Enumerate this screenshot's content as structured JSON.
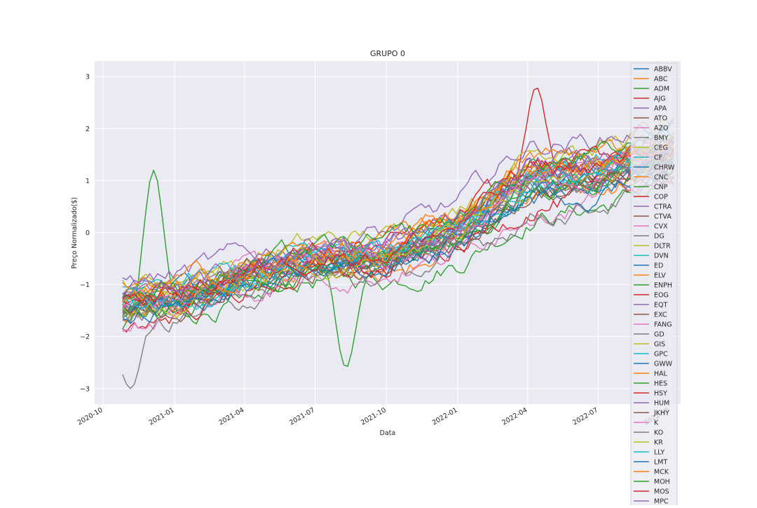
{
  "chart_data": {
    "type": "line",
    "title": "GRUPO 0",
    "xlabel": "Data",
    "ylabel": "Preço Normalizado($)",
    "x_range": [
      "2020-09-20",
      "2022-10-15"
    ],
    "x_data_range": [
      "2020-10-26",
      "2022-10-07"
    ],
    "ylim": [
      -3.3,
      3.3
    ],
    "yticks": [
      -3,
      -2,
      -1,
      0,
      1,
      2,
      3
    ],
    "xticks": [
      "2020-10",
      "2021-01",
      "2021-04",
      "2021-07",
      "2021-10",
      "2022-01",
      "2022-04",
      "2022-07",
      "2022-10"
    ],
    "grid": true,
    "legend_position": "right",
    "background": "#eaeaf2",
    "palette": [
      "#1f77b4",
      "#ff7f0e",
      "#2ca02c",
      "#d62728",
      "#9467bd",
      "#8c564b",
      "#e377c2",
      "#7f7f7f",
      "#bcbd22",
      "#17becf"
    ],
    "series_names": [
      "ABBV",
      "ABC",
      "ADM",
      "AJG",
      "APA",
      "ATO",
      "AZO",
      "BMY",
      "CEG",
      "CF",
      "CHRW",
      "CNC",
      "CNP",
      "COP",
      "CTRA",
      "CTVA",
      "CVX",
      "DG",
      "DLTR",
      "DVN",
      "ED",
      "ELV",
      "ENPH",
      "EOG",
      "EQT",
      "EXC",
      "FANG",
      "GD",
      "GIS",
      "GPC",
      "GWW",
      "HAL",
      "HES",
      "HSY",
      "HUM",
      "JKHY",
      "K",
      "KO",
      "KR",
      "LLY",
      "LMT",
      "MCK",
      "MOH",
      "MOS",
      "MPC"
    ],
    "series_trend_approx": {
      "dates": [
        "2020-10-26",
        "2021-01-01",
        "2021-04-01",
        "2021-07-01",
        "2021-10-01",
        "2022-01-01",
        "2022-04-01",
        "2022-07-01",
        "2022-10-07"
      ],
      "mean": [
        -1.4,
        -1.25,
        -0.85,
        -0.5,
        -0.45,
        0.0,
        1.0,
        1.15,
        1.55
      ],
      "spread": [
        0.55,
        0.45,
        0.4,
        0.4,
        0.45,
        0.55,
        0.7,
        0.65,
        0.6
      ]
    },
    "series_annotations": {
      "ADM": {
        "peak_date": "2020-12-05",
        "peak_value": 1.2
      },
      "AJG": {
        "peak_date": "2022-04-12",
        "peak_value": 2.8
      },
      "ENPH": {
        "low_date": "2021-08-10",
        "low_value": -2.6
      },
      "GD": {
        "low_date": "2020-11-05",
        "low_value": -3.0
      }
    }
  }
}
